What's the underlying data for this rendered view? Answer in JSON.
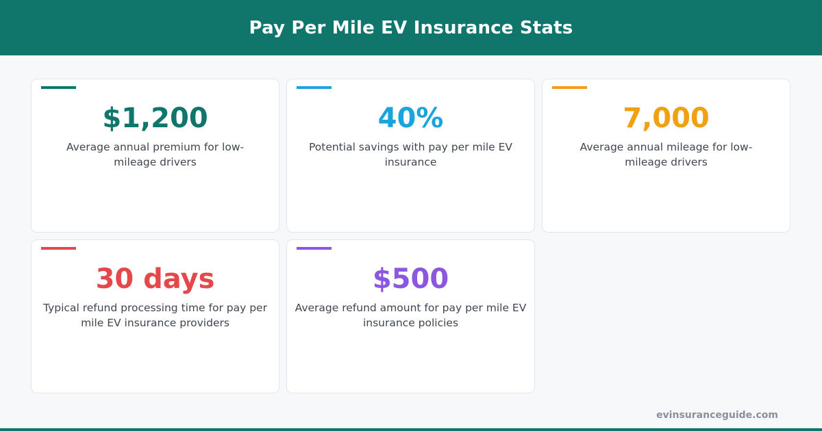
{
  "header": {
    "title": "Pay Per Mile EV Insurance Stats"
  },
  "colors": {
    "brand": "#10766c",
    "teal": "#10766c",
    "blue": "#1aa3dd",
    "amber": "#f0a010",
    "red": "#e4484a",
    "purple": "#8b56e0"
  },
  "stats": [
    {
      "value": "$1,200",
      "description": "Average annual premium for low-mileage drivers",
      "color": "#10766c"
    },
    {
      "value": "40%",
      "description": "Potential savings with pay per mile EV insurance",
      "color": "#1aa3dd"
    },
    {
      "value": "7,000",
      "description": "Average annual mileage for low-mileage drivers",
      "color": "#f0a010"
    },
    {
      "value": "30 days",
      "description": "Typical refund processing time for pay per mile EV insurance providers",
      "color": "#e4484a"
    },
    {
      "value": "$500",
      "description": "Average refund amount for pay per mile EV insurance policies",
      "color": "#8b56e0"
    }
  ],
  "footer": {
    "site": "evinsuranceguide.com"
  }
}
